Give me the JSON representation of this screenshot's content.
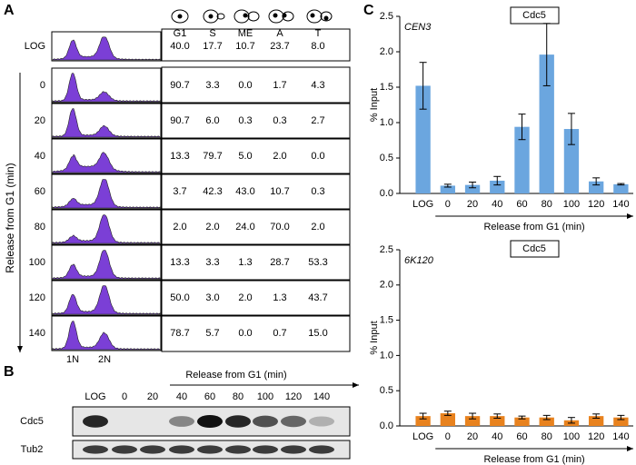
{
  "panel_labels": [
    "A",
    "B",
    "C"
  ],
  "flow_table": {
    "columns": [
      "G1",
      "S",
      "ME",
      "A",
      "T"
    ],
    "y_label": "Release from G1 (min)",
    "x_labels": [
      "1N",
      "2N"
    ],
    "rows": [
      {
        "label": "LOG",
        "values": [
          "40.0",
          "17.7",
          "10.7",
          "23.7",
          "8.0"
        ]
      },
      {
        "label": "0",
        "values": [
          "90.7",
          "3.3",
          "0.0",
          "1.7",
          "4.3"
        ]
      },
      {
        "label": "20",
        "values": [
          "90.7",
          "6.0",
          "0.3",
          "0.3",
          "2.7"
        ]
      },
      {
        "label": "40",
        "values": [
          "13.3",
          "79.7",
          "5.0",
          "2.0",
          "0.0"
        ]
      },
      {
        "label": "60",
        "values": [
          "3.7",
          "42.3",
          "43.0",
          "10.7",
          "0.3"
        ]
      },
      {
        "label": "80",
        "values": [
          "2.0",
          "2.0",
          "24.0",
          "70.0",
          "2.0"
        ]
      },
      {
        "label": "100",
        "values": [
          "13.3",
          "3.3",
          "1.3",
          "28.7",
          "53.3"
        ]
      },
      {
        "label": "120",
        "values": [
          "50.0",
          "3.0",
          "2.0",
          "1.3",
          "43.7"
        ]
      },
      {
        "label": "140",
        "values": [
          "78.7",
          "5.7",
          "0.0",
          "0.7",
          "15.0"
        ]
      }
    ]
  },
  "western": {
    "title": "Release from G1 (min)",
    "lanes": [
      "LOG",
      "0",
      "20",
      "40",
      "60",
      "80",
      "100",
      "120",
      "140"
    ],
    "rows": [
      "Cdc5",
      "Tub2"
    ]
  },
  "chart_data": [
    {
      "type": "bar",
      "title": "CEN3",
      "legend": "Cdc5",
      "y_label": "% Input",
      "x_label": "Release from G1 (min)",
      "color": "#6ba6df",
      "categories": [
        "LOG",
        "0",
        "20",
        "40",
        "60",
        "80",
        "100",
        "120",
        "140"
      ],
      "values": [
        1.52,
        0.11,
        0.12,
        0.18,
        0.94,
        1.96,
        0.91,
        0.17,
        0.13
      ],
      "errors": [
        0.33,
        0.02,
        0.04,
        0.06,
        0.18,
        0.44,
        0.22,
        0.05,
        0.01
      ],
      "ylim": [
        0,
        2.5
      ],
      "yticks": [
        {
          "value": 0,
          "label": "0.0"
        },
        0.5,
        {
          "value": 1,
          "label": "1.0"
        },
        1.5,
        {
          "value": 2,
          "label": "2.0"
        },
        2.5
      ]
    },
    {
      "type": "bar",
      "title": "6K120",
      "legend": "Cdc5",
      "y_label": "% Input",
      "x_label": "Release from G1 (min)",
      "color": "#e8821e",
      "categories": [
        "LOG",
        "0",
        "20",
        "40",
        "60",
        "80",
        "100",
        "120",
        "140"
      ],
      "values": [
        0.14,
        0.18,
        0.14,
        0.14,
        0.12,
        0.12,
        0.08,
        0.14,
        0.12
      ],
      "errors": [
        0.04,
        0.03,
        0.04,
        0.03,
        0.02,
        0.03,
        0.04,
        0.03,
        0.03
      ],
      "ylim": [
        0,
        2.5
      ],
      "yticks": [
        {
          "value": 0,
          "label": "0.0"
        },
        0.5,
        {
          "value": 1,
          "label": "1.0"
        },
        1.5,
        {
          "value": 2,
          "label": "2.0"
        },
        2.5
      ]
    }
  ]
}
